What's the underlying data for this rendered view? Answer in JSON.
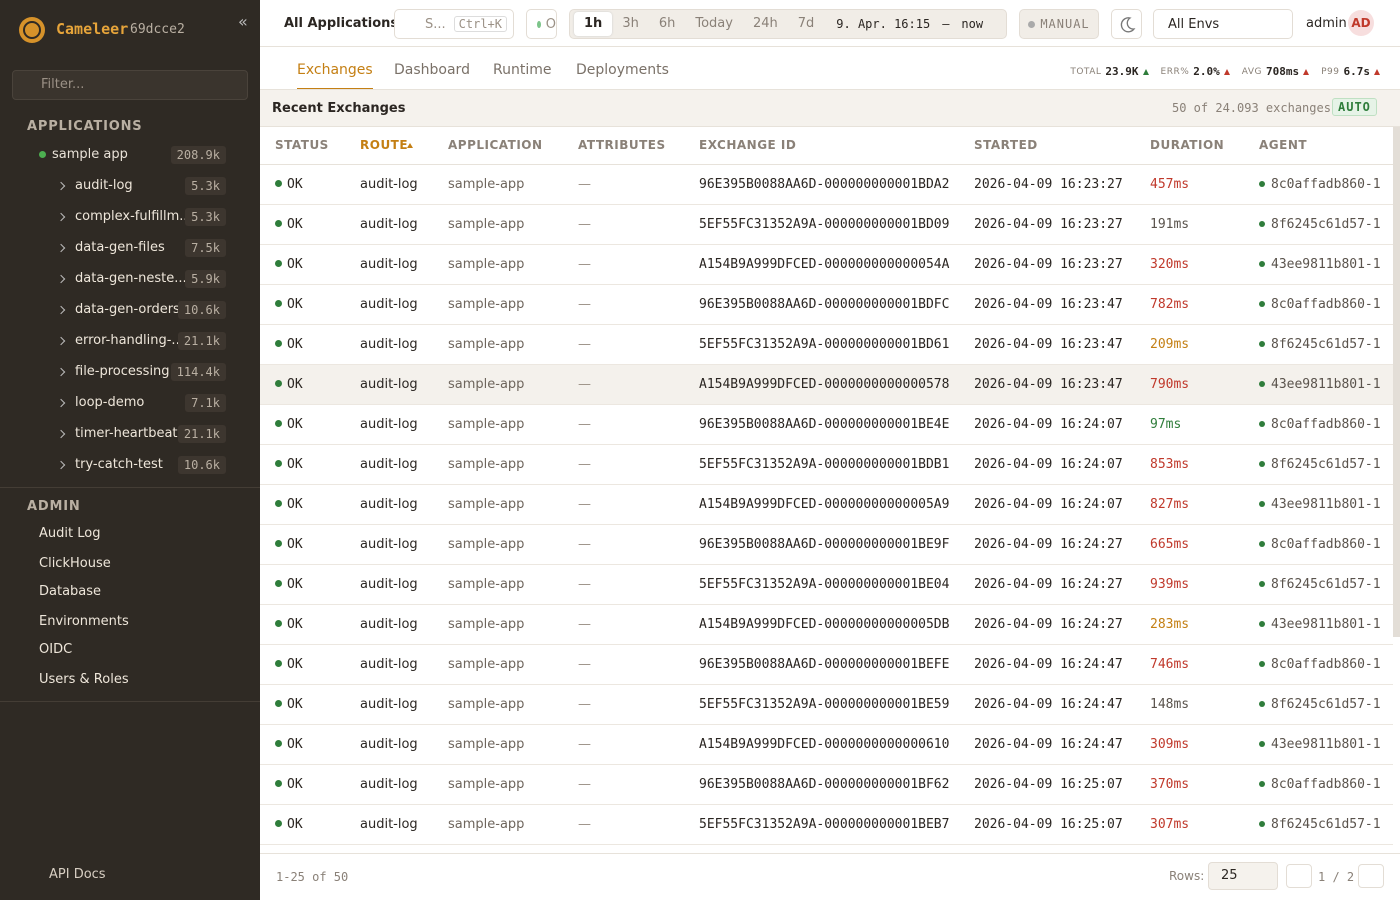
{
  "sidebar": {
    "brand": "Cameleer",
    "version": "69dcce2",
    "filter_placeholder": "Filter...",
    "applications_heading": "APPLICATIONS",
    "app": {
      "name": "sample app",
      "count": "208.9k",
      "routes": [
        {
          "name": "audit-log",
          "count": "5.3k"
        },
        {
          "name": "complex-fulfillm...",
          "count": "5.3k"
        },
        {
          "name": "data-gen-files",
          "count": "7.5k"
        },
        {
          "name": "data-gen-neste...",
          "count": "5.9k"
        },
        {
          "name": "data-gen-orders",
          "count": "10.6k"
        },
        {
          "name": "error-handling-...",
          "count": "21.1k"
        },
        {
          "name": "file-processing",
          "count": "114.4k"
        },
        {
          "name": "loop-demo",
          "count": "7.1k"
        },
        {
          "name": "timer-heartbeat",
          "count": "21.1k"
        },
        {
          "name": "try-catch-test",
          "count": "10.6k"
        }
      ]
    },
    "admin_heading": "ADMIN",
    "admin_items": [
      "Audit Log",
      "ClickHouse",
      "Database",
      "Environments",
      "OIDC",
      "Users & Roles"
    ],
    "footer_link": "API Docs"
  },
  "topbar": {
    "title": "All Applications",
    "search": "S...",
    "shortcut": "Ctrl+K",
    "status": "O",
    "time_ranges": [
      "1h",
      "3h",
      "6h",
      "Today",
      "24h",
      "7d"
    ],
    "range_start": "9. Apr. 16:15",
    "range_sep": "—",
    "range_end": "now",
    "mode": "MANUAL",
    "env": "All Envs",
    "user": "admin",
    "avatar": "AD"
  },
  "tabs": [
    "Exchanges",
    "Dashboard",
    "Runtime",
    "Deployments"
  ],
  "stats": [
    {
      "label": "TOTAL",
      "value": "23.9K"
    },
    {
      "label": "ERR%",
      "value": "2.0%"
    },
    {
      "label": "AVG",
      "value": "708ms"
    },
    {
      "label": "P99",
      "value": "6.7s"
    }
  ],
  "panel": {
    "title": "Recent Exchanges",
    "count": "50 of 24.093 exchanges",
    "badge": "AUTO"
  },
  "table": {
    "columns": [
      "STATUS",
      "ROUTE",
      "APPLICATION",
      "ATTRIBUTES",
      "EXCHANGE ID",
      "STARTED",
      "DURATION",
      "AGENT"
    ],
    "rows": [
      [
        "OK",
        "audit-log",
        "sample-app",
        "—",
        "96E395B0088AA6D-000000000001BDA2",
        "2026-04-09 16:23:27",
        "457ms",
        "8c0affadb860-1"
      ],
      [
        "OK",
        "audit-log",
        "sample-app",
        "—",
        "5EF55FC31352A9A-000000000001BD09",
        "2026-04-09 16:23:27",
        "191ms",
        "8f6245c61d57-1"
      ],
      [
        "OK",
        "audit-log",
        "sample-app",
        "—",
        "A154B9A999DFCED-000000000000054A",
        "2026-04-09 16:23:27",
        "320ms",
        "43ee9811b801-1"
      ],
      [
        "OK",
        "audit-log",
        "sample-app",
        "—",
        "96E395B0088AA6D-000000000001BDFC",
        "2026-04-09 16:23:47",
        "782ms",
        "8c0affadb860-1"
      ],
      [
        "OK",
        "audit-log",
        "sample-app",
        "—",
        "5EF55FC31352A9A-000000000001BD61",
        "2026-04-09 16:23:47",
        "209ms",
        "8f6245c61d57-1"
      ],
      [
        "OK",
        "audit-log",
        "sample-app",
        "—",
        "A154B9A999DFCED-0000000000000578",
        "2026-04-09 16:23:47",
        "790ms",
        "43ee9811b801-1"
      ],
      [
        "OK",
        "audit-log",
        "sample-app",
        "—",
        "96E395B0088AA6D-000000000001BE4E",
        "2026-04-09 16:24:07",
        "97ms",
        "8c0affadb860-1"
      ],
      [
        "OK",
        "audit-log",
        "sample-app",
        "—",
        "5EF55FC31352A9A-000000000001BDB1",
        "2026-04-09 16:24:07",
        "853ms",
        "8f6245c61d57-1"
      ],
      [
        "OK",
        "audit-log",
        "sample-app",
        "—",
        "A154B9A999DFCED-00000000000005A9",
        "2026-04-09 16:24:07",
        "827ms",
        "43ee9811b801-1"
      ],
      [
        "OK",
        "audit-log",
        "sample-app",
        "—",
        "96E395B0088AA6D-000000000001BE9F",
        "2026-04-09 16:24:27",
        "665ms",
        "8c0affadb860-1"
      ],
      [
        "OK",
        "audit-log",
        "sample-app",
        "—",
        "5EF55FC31352A9A-000000000001BE04",
        "2026-04-09 16:24:27",
        "939ms",
        "8f6245c61d57-1"
      ],
      [
        "OK",
        "audit-log",
        "sample-app",
        "—",
        "A154B9A999DFCED-00000000000005DB",
        "2026-04-09 16:24:27",
        "283ms",
        "43ee9811b801-1"
      ],
      [
        "OK",
        "audit-log",
        "sample-app",
        "—",
        "96E395B0088AA6D-000000000001BEFE",
        "2026-04-09 16:24:47",
        "746ms",
        "8c0affadb860-1"
      ],
      [
        "OK",
        "audit-log",
        "sample-app",
        "—",
        "5EF55FC31352A9A-000000000001BE59",
        "2026-04-09 16:24:47",
        "148ms",
        "8f6245c61d57-1"
      ],
      [
        "OK",
        "audit-log",
        "sample-app",
        "—",
        "A154B9A999DFCED-0000000000000610",
        "2026-04-09 16:24:47",
        "309ms",
        "43ee9811b801-1"
      ],
      [
        "OK",
        "audit-log",
        "sample-app",
        "—",
        "96E395B0088AA6D-000000000001BF62",
        "2026-04-09 16:25:07",
        "370ms",
        "8c0affadb860-1"
      ],
      [
        "OK",
        "audit-log",
        "sample-app",
        "—",
        "5EF55FC31352A9A-000000000001BEB7",
        "2026-04-09 16:25:07",
        "307ms",
        "8f6245c61d57-1"
      ]
    ]
  },
  "footer": {
    "range": "1-25 of 50",
    "rows_label": "Rows:",
    "rows_value": "25",
    "page": "1 / 2"
  }
}
